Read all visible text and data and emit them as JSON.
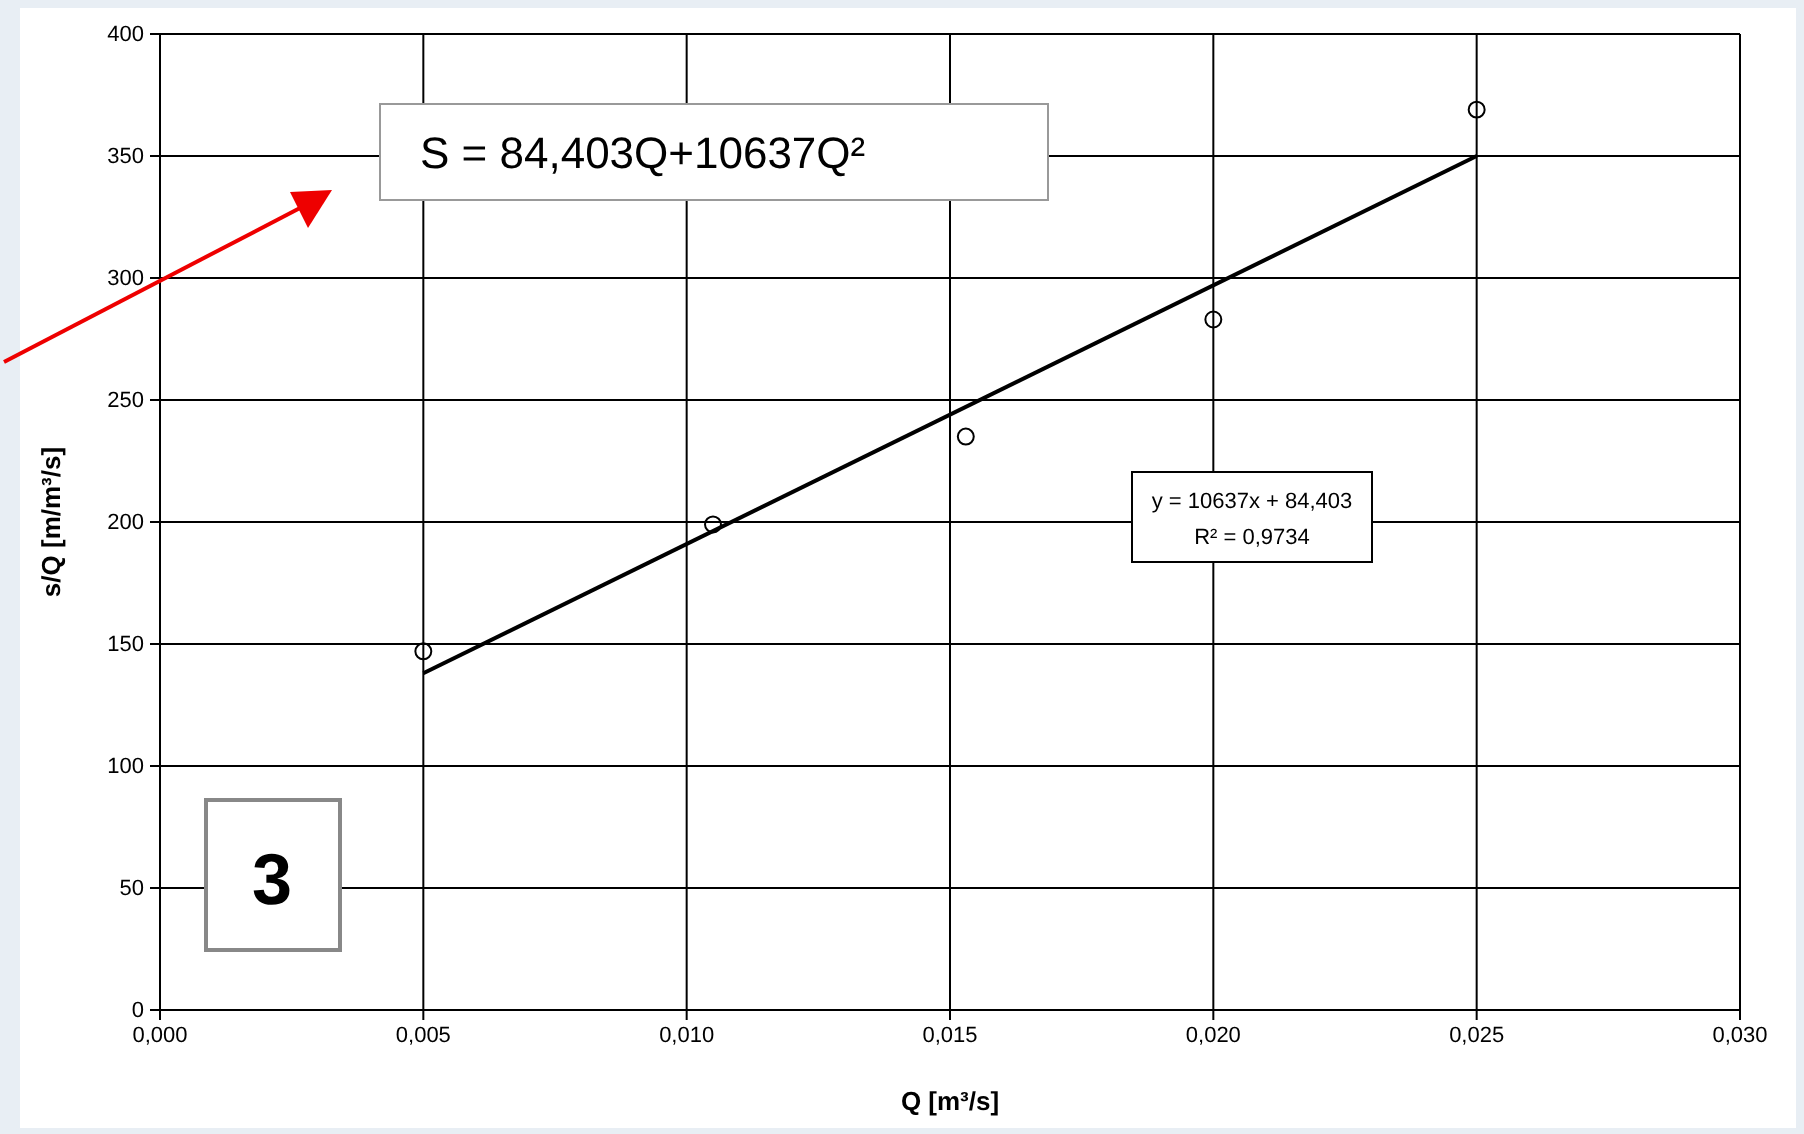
{
  "chart_data": {
    "type": "scatter",
    "xlabel": "Q [m³/s]",
    "ylabel": "s/Q [m/m³/s]",
    "xlim": [
      0,
      0.03
    ],
    "xticks": [
      {
        "value": 0,
        "label": "0,000"
      },
      {
        "value": 0.005,
        "label": "0,005"
      },
      {
        "value": 0.01,
        "label": "0,010"
      },
      {
        "value": 0.015,
        "label": "0,015"
      },
      {
        "value": 0.02,
        "label": "0,020"
      },
      {
        "value": 0.025,
        "label": "0,025"
      },
      {
        "value": 0.03,
        "label": "0,030"
      }
    ],
    "ylim": [
      0,
      400
    ],
    "yticks": [
      0,
      50,
      100,
      150,
      200,
      250,
      300,
      350,
      400
    ],
    "grid": true,
    "series": [
      {
        "color": "#000000",
        "marker": "circle",
        "x": [
          0.005,
          0.0105,
          0.0153,
          0.02,
          0.025
        ],
        "values": [
          147,
          199,
          235,
          283,
          369
        ]
      },
      {
        "type": "line",
        "color": "#000000",
        "marker": "none",
        "x": [
          0.005,
          0.025
        ],
        "values": [
          138,
          350
        ]
      }
    ],
    "annotations": [
      "S = 84,403Q+10637Q²",
      "y = 10637x + 84,403",
      "R² = 0,9734",
      "3"
    ]
  }
}
